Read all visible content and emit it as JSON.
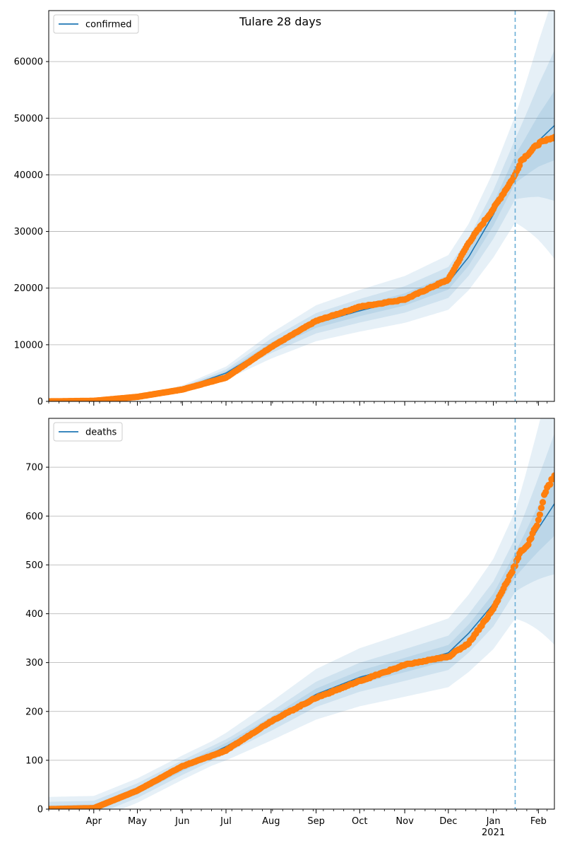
{
  "figure": {
    "title": "Tulare 28 days"
  },
  "chart_data": [
    {
      "type": "line",
      "title": "Tulare 28 days",
      "legend": [
        "confirmed"
      ],
      "legend_position": "top-left",
      "grid": "y",
      "ylim": [
        0,
        69000
      ],
      "yticks": [
        0,
        10000,
        20000,
        30000,
        40000,
        50000,
        60000
      ],
      "xticklabels": [],
      "forecast_start": "2021-01-16",
      "x_range": [
        "2020-03-01",
        "2021-02-12"
      ],
      "colors": {
        "line": "#1f77b4",
        "observed": "#ff7f0e",
        "band": "#1f77b4"
      },
      "model_anchors": [
        [
          "2020-03-01",
          0
        ],
        [
          "2020-04-01",
          120
        ],
        [
          "2020-05-01",
          800
        ],
        [
          "2020-06-01",
          2300
        ],
        [
          "2020-07-01",
          5000
        ],
        [
          "2020-08-01",
          9800
        ],
        [
          "2020-09-01",
          13800
        ],
        [
          "2020-10-01",
          16000
        ],
        [
          "2020-11-01",
          18000
        ],
        [
          "2020-12-01",
          21000
        ],
        [
          "2020-12-15",
          25500
        ],
        [
          "2021-01-01",
          33000
        ],
        [
          "2021-01-16",
          41000
        ],
        [
          "2021-02-01",
          46000
        ],
        [
          "2021-02-12",
          48700
        ]
      ],
      "band_rel_widths": [
        0.06,
        0.13,
        0.23
      ],
      "observed_anchors": [
        [
          "2020-03-01",
          0
        ],
        [
          "2020-04-01",
          100
        ],
        [
          "2020-05-01",
          800
        ],
        [
          "2020-06-01",
          2100
        ],
        [
          "2020-07-01",
          4200
        ],
        [
          "2020-08-01",
          9600
        ],
        [
          "2020-09-01",
          14200
        ],
        [
          "2020-10-01",
          16700
        ],
        [
          "2020-11-01",
          18000
        ],
        [
          "2020-12-01",
          21500
        ],
        [
          "2020-12-15",
          28000
        ],
        [
          "2021-01-01",
          34000
        ],
        [
          "2021-01-16",
          40000
        ],
        [
          "2021-01-20",
          42500
        ],
        [
          "2021-02-01",
          45500
        ],
        [
          "2021-02-12",
          46600
        ]
      ]
    },
    {
      "type": "line",
      "title": "",
      "legend": [
        "deaths"
      ],
      "legend_position": "top-left",
      "grid": "y",
      "ylim": [
        0,
        800
      ],
      "yticks": [
        0,
        100,
        200,
        300,
        400,
        500,
        600,
        700
      ],
      "xticklabels": [
        {
          "label": "Apr",
          "date": "2020-04-01"
        },
        {
          "label": "May",
          "date": "2020-05-01"
        },
        {
          "label": "Jun",
          "date": "2020-06-01"
        },
        {
          "label": "Jul",
          "date": "2020-07-01"
        },
        {
          "label": "Aug",
          "date": "2020-08-01"
        },
        {
          "label": "Sep",
          "date": "2020-09-01"
        },
        {
          "label": "Oct",
          "date": "2020-10-01"
        },
        {
          "label": "Nov",
          "date": "2020-11-01"
        },
        {
          "label": "Dec",
          "date": "2020-12-01"
        },
        {
          "label": "Jan",
          "date": "2021-01-01",
          "sublabel": "2021"
        },
        {
          "label": "Feb",
          "date": "2021-02-01"
        }
      ],
      "forecast_start": "2021-01-16",
      "x_range": [
        "2020-03-01",
        "2021-02-12"
      ],
      "colors": {
        "line": "#1f77b4",
        "observed": "#ff7f0e",
        "band": "#1f77b4"
      },
      "model_anchors": [
        [
          "2020-03-01",
          0
        ],
        [
          "2020-04-01",
          2
        ],
        [
          "2020-05-01",
          38
        ],
        [
          "2020-06-01",
          85
        ],
        [
          "2020-07-01",
          128
        ],
        [
          "2020-08-01",
          180
        ],
        [
          "2020-09-01",
          235
        ],
        [
          "2020-10-01",
          270
        ],
        [
          "2020-11-01",
          295
        ],
        [
          "2020-12-01",
          320
        ],
        [
          "2020-12-15",
          360
        ],
        [
          "2021-01-01",
          420
        ],
        [
          "2021-01-16",
          500
        ],
        [
          "2021-02-01",
          575
        ],
        [
          "2021-02-12",
          625
        ]
      ],
      "band_rel_widths": [
        0.05,
        0.11,
        0.22
      ],
      "band_min_width": 25,
      "observed_anchors": [
        [
          "2020-03-01",
          0
        ],
        [
          "2020-04-01",
          2
        ],
        [
          "2020-05-01",
          38
        ],
        [
          "2020-06-01",
          88
        ],
        [
          "2020-07-01",
          120
        ],
        [
          "2020-08-01",
          180
        ],
        [
          "2020-09-01",
          228
        ],
        [
          "2020-10-01",
          262
        ],
        [
          "2020-11-01",
          295
        ],
        [
          "2020-12-01",
          312
        ],
        [
          "2020-12-15",
          340
        ],
        [
          "2021-01-01",
          410
        ],
        [
          "2021-01-16",
          500
        ],
        [
          "2021-01-20",
          528
        ],
        [
          "2021-01-25",
          542
        ],
        [
          "2021-02-01",
          590
        ],
        [
          "2021-02-05",
          645
        ],
        [
          "2021-02-12",
          684
        ]
      ]
    }
  ]
}
